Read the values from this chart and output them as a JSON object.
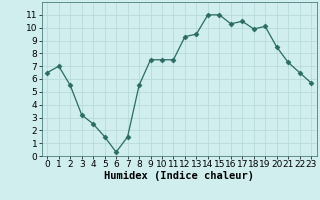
{
  "x": [
    0,
    1,
    2,
    3,
    4,
    5,
    6,
    7,
    8,
    9,
    10,
    11,
    12,
    13,
    14,
    15,
    16,
    17,
    18,
    19,
    20,
    21,
    22,
    23
  ],
  "y": [
    6.5,
    7.0,
    5.5,
    3.2,
    2.5,
    1.5,
    0.3,
    1.5,
    5.5,
    7.5,
    7.5,
    7.5,
    9.3,
    9.5,
    11.0,
    11.0,
    10.3,
    10.5,
    9.9,
    10.1,
    8.5,
    7.3,
    6.5,
    5.7
  ],
  "line_color": "#2a6b62",
  "marker": "D",
  "marker_size": 2.5,
  "bg_color": "#d0eeee",
  "grid_color": "#b8dada",
  "xlabel": "Humidex (Indice chaleur)",
  "xlim": [
    -0.5,
    23.5
  ],
  "ylim": [
    0,
    12
  ],
  "yticks": [
    0,
    1,
    2,
    3,
    4,
    5,
    6,
    7,
    8,
    9,
    10,
    11
  ],
  "xticks": [
    0,
    1,
    2,
    3,
    4,
    5,
    6,
    7,
    8,
    9,
    10,
    11,
    12,
    13,
    14,
    15,
    16,
    17,
    18,
    19,
    20,
    21,
    22,
    23
  ],
  "font_size": 6.5,
  "label_fontsize": 7.5
}
